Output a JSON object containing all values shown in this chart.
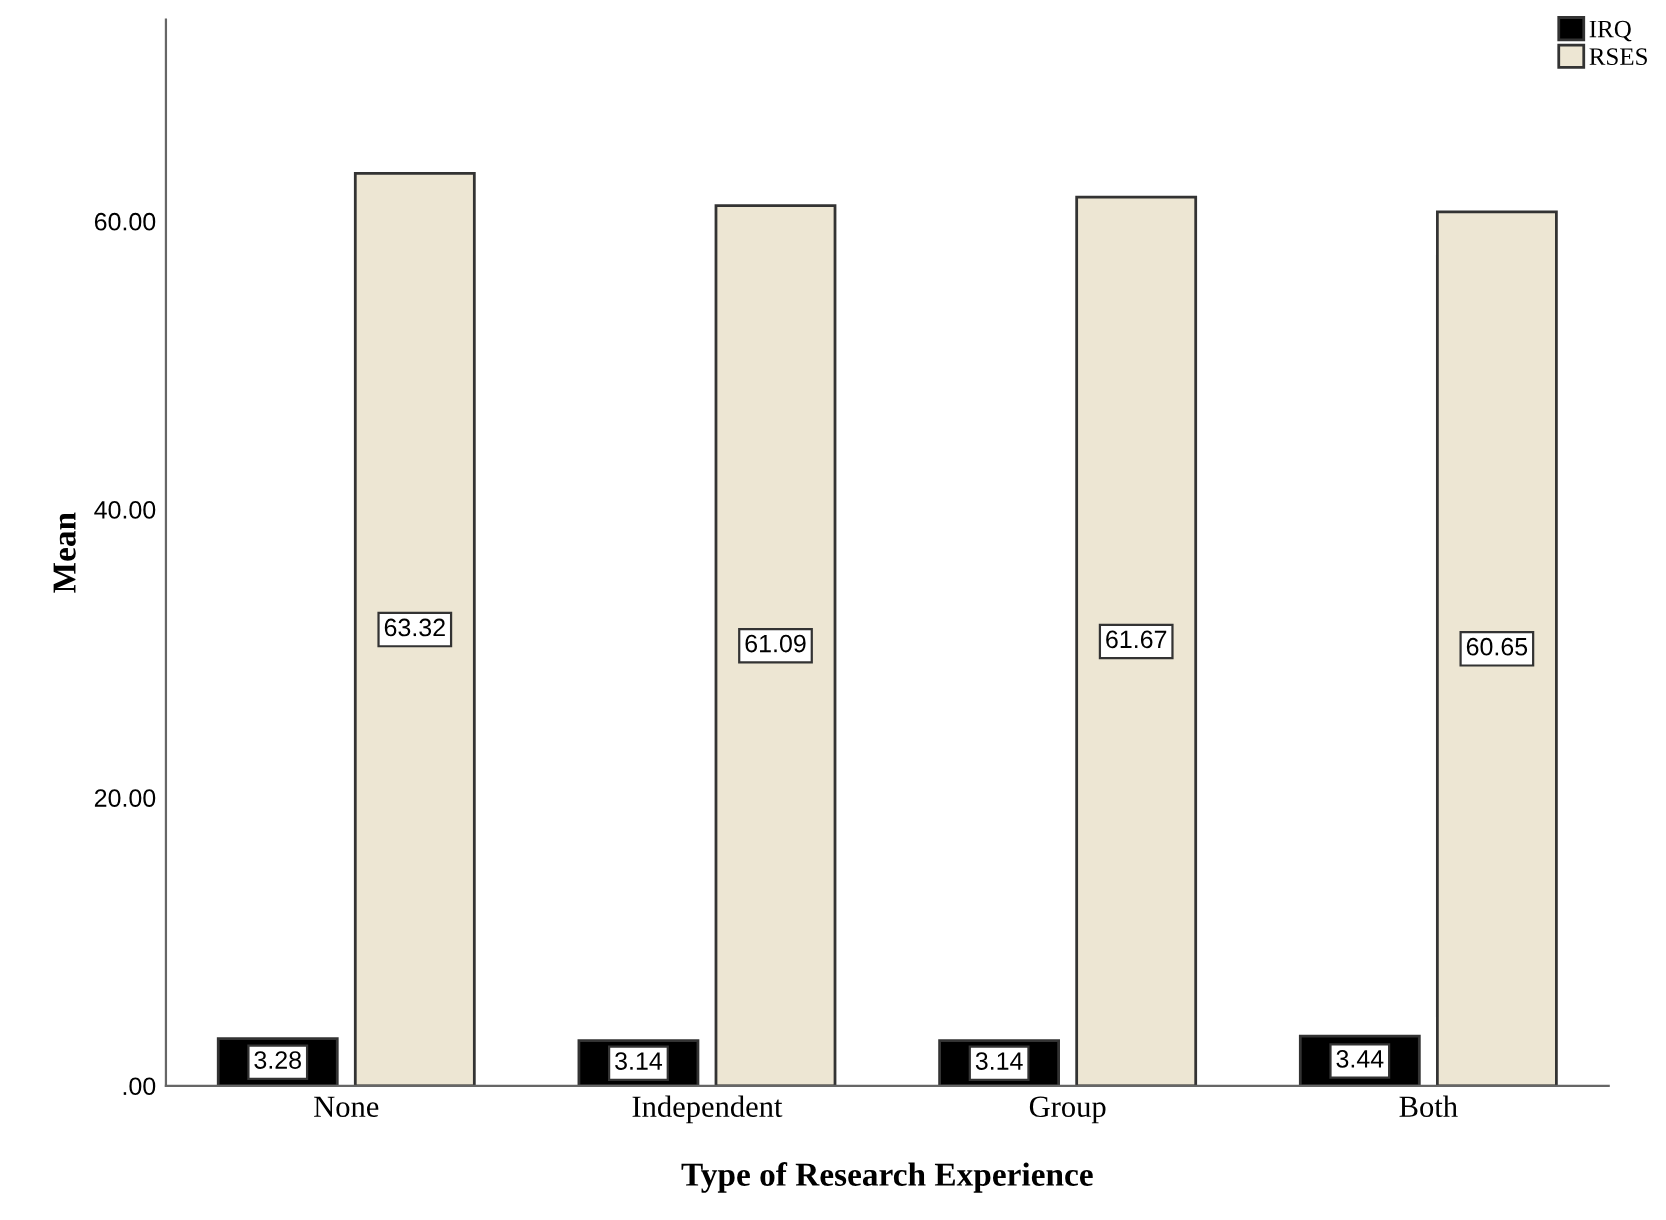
{
  "chart_data": {
    "type": "bar",
    "xlabel": "Type of Research Experience",
    "ylabel": "Mean",
    "categories": [
      "None",
      "Independent",
      "Group",
      "Both"
    ],
    "series": [
      {
        "name": "IRQ",
        "color": "#000000",
        "values": [
          3.28,
          3.14,
          3.14,
          3.44
        ]
      },
      {
        "name": "RSES",
        "color": "#ede6d3",
        "values": [
          63.32,
          61.09,
          61.67,
          60.65
        ]
      }
    ],
    "ylim": [
      0,
      74
    ],
    "yticks": [
      {
        "value": 0,
        "label": ".00"
      },
      {
        "value": 20,
        "label": "20.00"
      },
      {
        "value": 40,
        "label": "40.00"
      },
      {
        "value": 60,
        "label": "60.00"
      }
    ],
    "data_labels": true,
    "grid": false,
    "legend": "top right"
  }
}
